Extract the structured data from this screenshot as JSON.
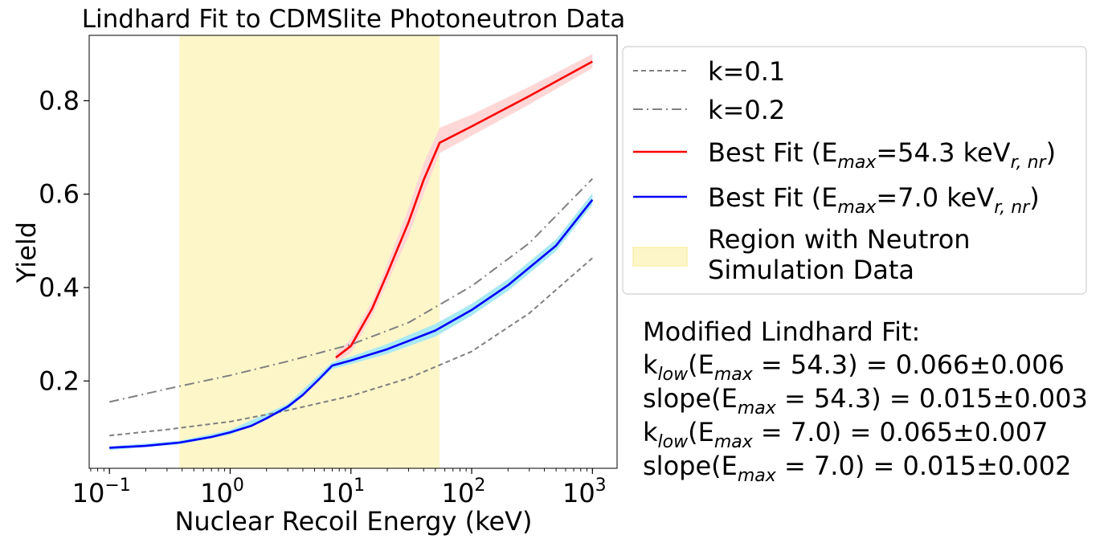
{
  "chart_data": {
    "type": "line",
    "title": "Lindhard Fit to CDMSlite Photoneutron Data",
    "xlabel": "Nuclear Recoil Energy (keV)",
    "ylabel": "Yield",
    "xscale": "log",
    "xlim": [
      0.068,
      1600
    ],
    "ylim": [
      0.013,
      0.94
    ],
    "x_ticks": [
      {
        "base": "10",
        "exp": "−1",
        "value": 0.1
      },
      {
        "base": "10",
        "exp": "0",
        "value": 1
      },
      {
        "base": "10",
        "exp": "1",
        "value": 10
      },
      {
        "base": "10",
        "exp": "2",
        "value": 100
      },
      {
        "base": "10",
        "exp": "3",
        "value": 1000
      }
    ],
    "y_ticks": [
      {
        "label": "0.2",
        "value": 0.2
      },
      {
        "label": "0.4",
        "value": 0.4
      },
      {
        "label": "0.6",
        "value": 0.6
      },
      {
        "label": "0.8",
        "value": 0.8
      }
    ],
    "shaded_region": {
      "x": [
        0.38,
        54.3
      ],
      "color": "#fdf6c9",
      "border": "#f7e98e"
    },
    "series": [
      {
        "id": "k01",
        "color": "#808080",
        "dash": "6,4",
        "points": [
          [
            0.1,
            0.083
          ],
          [
            0.3,
            0.096
          ],
          [
            1,
            0.113
          ],
          [
            3,
            0.137
          ],
          [
            10,
            0.168
          ],
          [
            30,
            0.206
          ],
          [
            100,
            0.263
          ],
          [
            300,
            0.345
          ],
          [
            1000,
            0.463
          ]
        ]
      },
      {
        "id": "k02",
        "color": "#808080",
        "dash": "12,5,2,5",
        "points": [
          [
            0.1,
            0.155
          ],
          [
            0.3,
            0.183
          ],
          [
            1,
            0.212
          ],
          [
            3,
            0.242
          ],
          [
            10,
            0.278
          ],
          [
            30,
            0.325
          ],
          [
            100,
            0.403
          ],
          [
            300,
            0.495
          ],
          [
            1000,
            0.633
          ]
        ]
      },
      {
        "id": "best54",
        "color": "#ff0000",
        "band_color": "#ffd7d7",
        "points": [
          [
            7.5,
            0.25
          ],
          [
            10,
            0.275
          ],
          [
            15,
            0.355
          ],
          [
            20,
            0.43
          ],
          [
            30,
            0.54
          ],
          [
            40,
            0.63
          ],
          [
            54.3,
            0.71
          ],
          [
            100,
            0.745
          ],
          [
            300,
            0.81
          ],
          [
            1000,
            0.884
          ]
        ],
        "band": [
          [
            7.5,
            0.24,
            0.26
          ],
          [
            10,
            0.26,
            0.29
          ],
          [
            15,
            0.34,
            0.37
          ],
          [
            20,
            0.41,
            0.45
          ],
          [
            30,
            0.51,
            0.57
          ],
          [
            40,
            0.6,
            0.665
          ],
          [
            54.3,
            0.688,
            0.742
          ],
          [
            100,
            0.725,
            0.77
          ],
          [
            300,
            0.792,
            0.83
          ],
          [
            1000,
            0.87,
            0.9
          ]
        ]
      },
      {
        "id": "best7",
        "color": "#0000ff",
        "band_color": "#a8e9f3",
        "points": [
          [
            0.1,
            0.057
          ],
          [
            0.2,
            0.061
          ],
          [
            0.38,
            0.068
          ],
          [
            0.7,
            0.08
          ],
          [
            1,
            0.09
          ],
          [
            1.5,
            0.104
          ],
          [
            2,
            0.12
          ],
          [
            3,
            0.145
          ],
          [
            4,
            0.17
          ],
          [
            5.5,
            0.205
          ],
          [
            7,
            0.233
          ],
          [
            10,
            0.244
          ],
          [
            20,
            0.268
          ],
          [
            50,
            0.308
          ],
          [
            100,
            0.352
          ],
          [
            200,
            0.405
          ],
          [
            500,
            0.49
          ],
          [
            1000,
            0.588
          ]
        ],
        "band": [
          [
            0.1,
            0.052,
            0.06
          ],
          [
            0.38,
            0.064,
            0.072
          ],
          [
            1,
            0.085,
            0.095
          ],
          [
            3,
            0.139,
            0.151
          ],
          [
            7,
            0.226,
            0.24
          ],
          [
            10,
            0.236,
            0.252
          ],
          [
            20,
            0.258,
            0.279
          ],
          [
            50,
            0.295,
            0.322
          ],
          [
            100,
            0.34,
            0.365
          ],
          [
            200,
            0.393,
            0.418
          ],
          [
            500,
            0.478,
            0.503
          ],
          [
            1000,
            0.577,
            0.602
          ]
        ]
      }
    ],
    "legend": {
      "placement": "outside-right",
      "entries": [
        {
          "series": "k01",
          "text": "k=0.1"
        },
        {
          "series": "k02",
          "text": "k=0.2"
        },
        {
          "series": "best54",
          "pre": "Best Fit (E",
          "sub1": "max",
          "mid": "=54.3 keV",
          "sub2": "r, nr",
          "post": ")"
        },
        {
          "series": "best7",
          "pre": "Best Fit (E",
          "sub1": "max",
          "mid": "=7.0 keV",
          "sub2": "r, nr",
          "post": ")"
        },
        {
          "series": "region",
          "line1": "Region with Neutron",
          "line2": "Simulation Data"
        }
      ]
    },
    "annotation": {
      "heading": "Modified Lindhard Fit:",
      "lines": [
        {
          "name": "k",
          "name_sub": "low",
          "emax": "54.3",
          "value": "= 0.066±0.006"
        },
        {
          "name": "slope",
          "name_sub": "",
          "emax": "54.3",
          "value": "= 0.015±0.003"
        },
        {
          "name": "k",
          "name_sub": "low",
          "emax": "7.0",
          "value": "= 0.065±0.007"
        },
        {
          "name": "slope",
          "name_sub": "",
          "emax": "7.0",
          "value": "= 0.015±0.002"
        }
      ],
      "e_label": "E",
      "e_sub": "max"
    }
  }
}
